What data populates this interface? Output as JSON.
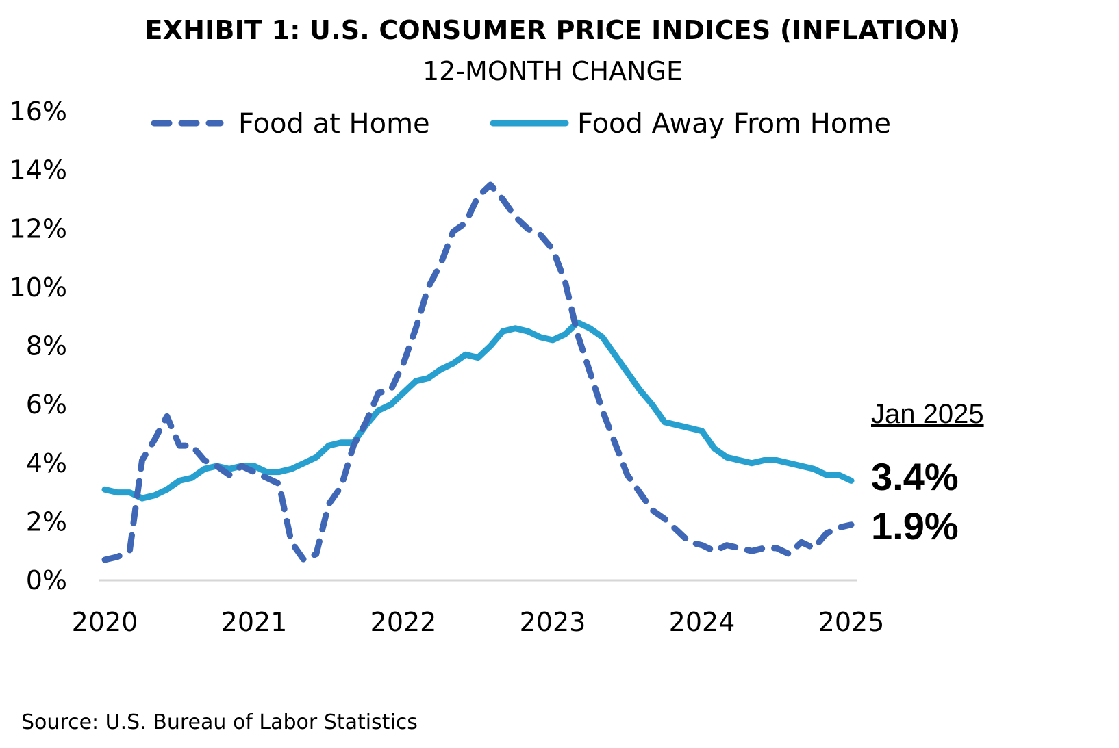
{
  "chart_data": {
    "type": "line",
    "title": "EXHIBIT 1: U.S. CONSUMER PRICE INDICES (INFLATION)",
    "subtitle": "12-MONTH CHANGE",
    "xlabel": "",
    "ylabel": "",
    "x_start": "2020-01",
    "x_end": "2025-01",
    "x_frequency": "monthly",
    "x_ticks": [
      "2020",
      "2021",
      "2022",
      "2023",
      "2024",
      "2025"
    ],
    "y_ticks": [
      "0%",
      "2%",
      "4%",
      "6%",
      "8%",
      "10%",
      "12%",
      "14%",
      "16%"
    ],
    "ylim": [
      0,
      16
    ],
    "y_step": 2,
    "grid": false,
    "legend_position": "top",
    "series": [
      {
        "name": "Food at Home",
        "style": "dashed",
        "color": "#3F67B5",
        "values": [
          0.7,
          0.8,
          1.0,
          4.1,
          4.8,
          5.6,
          4.6,
          4.6,
          4.1,
          3.9,
          3.6,
          3.9,
          3.7,
          3.5,
          3.3,
          1.3,
          0.7,
          0.9,
          2.6,
          3.2,
          4.6,
          5.4,
          6.4,
          6.5,
          7.4,
          8.6,
          10.0,
          10.8,
          11.9,
          12.2,
          13.1,
          13.5,
          13.0,
          12.4,
          12.0,
          11.8,
          11.3,
          10.2,
          8.4,
          7.1,
          5.8,
          4.7,
          3.6,
          3.0,
          2.4,
          2.1,
          1.7,
          1.3,
          1.2,
          1.0,
          1.2,
          1.1,
          1.0,
          1.1,
          1.1,
          0.9,
          1.3,
          1.1,
          1.6,
          1.8,
          1.9
        ]
      },
      {
        "name": "Food Away From Home",
        "style": "solid",
        "color": "#27A0D0",
        "values": [
          3.1,
          3.0,
          3.0,
          2.8,
          2.9,
          3.1,
          3.4,
          3.5,
          3.8,
          3.9,
          3.8,
          3.9,
          3.9,
          3.7,
          3.7,
          3.8,
          4.0,
          4.2,
          4.6,
          4.7,
          4.7,
          5.3,
          5.8,
          6.0,
          6.4,
          6.8,
          6.9,
          7.2,
          7.4,
          7.7,
          7.6,
          8.0,
          8.5,
          8.6,
          8.5,
          8.3,
          8.2,
          8.4,
          8.8,
          8.6,
          8.3,
          7.7,
          7.1,
          6.5,
          6.0,
          5.4,
          5.3,
          5.2,
          5.1,
          4.5,
          4.2,
          4.1,
          4.0,
          4.1,
          4.1,
          4.0,
          3.9,
          3.8,
          3.6,
          3.6,
          3.4
        ]
      }
    ],
    "annotations": {
      "date_label": "Jan 2025",
      "values": [
        {
          "series": "Food Away From Home",
          "label": "3.4%"
        },
        {
          "series": "Food at Home",
          "label": "1.9%"
        }
      ]
    },
    "source": "Source: U.S. Bureau of Labor Statistics"
  }
}
